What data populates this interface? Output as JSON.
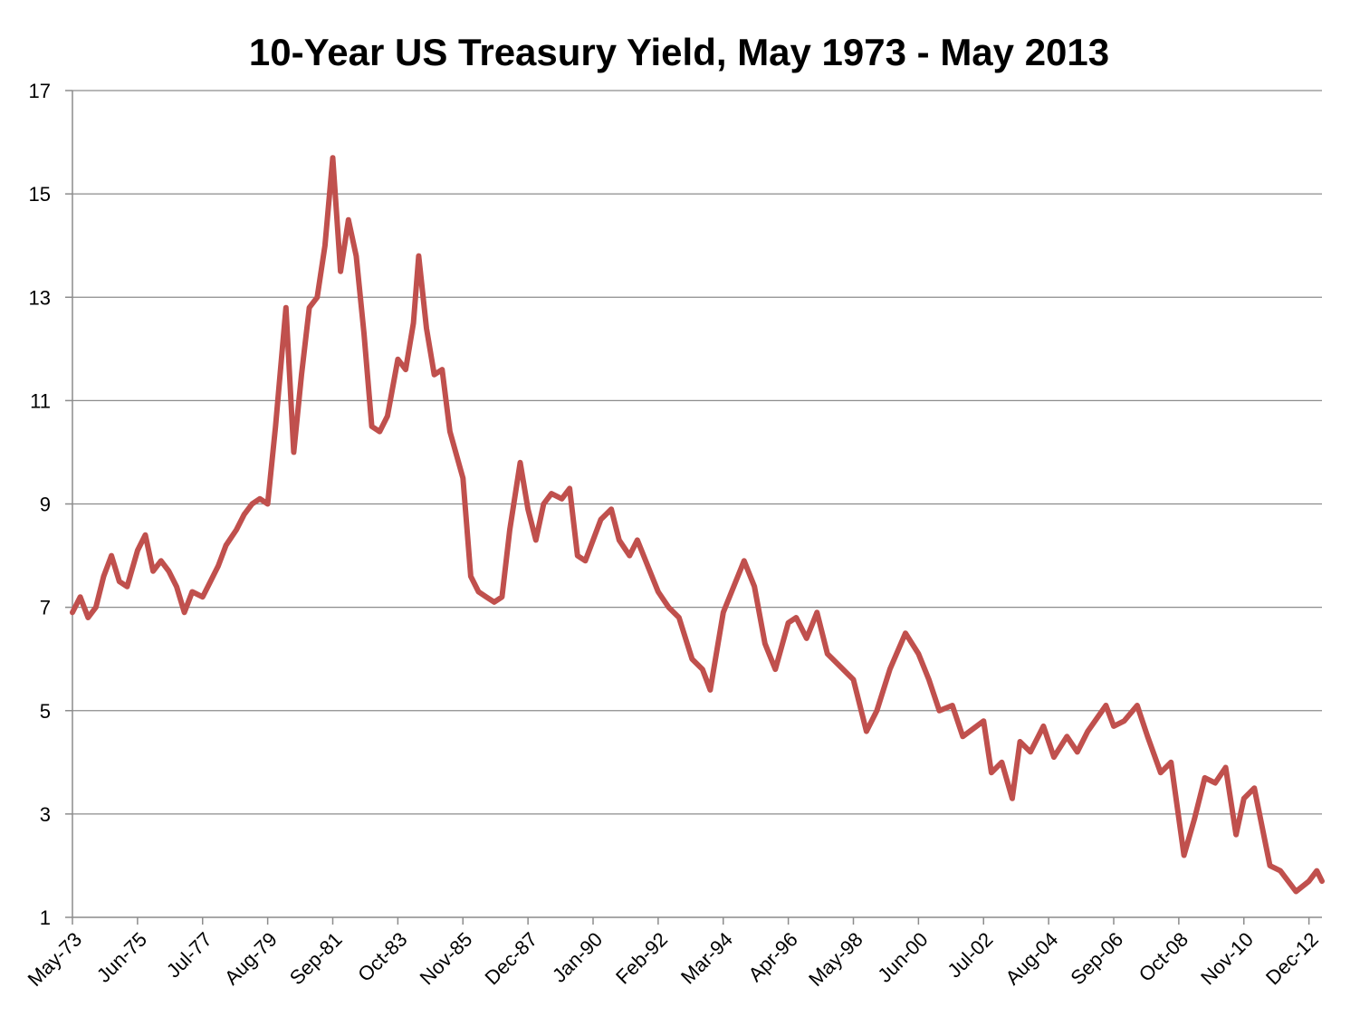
{
  "chart_data": {
    "type": "line",
    "title": "10-Year US Treasury Yield, May 1973 - May 2013",
    "xlabel": "",
    "ylabel": "",
    "ylim": [
      1,
      17
    ],
    "yticks": [
      1,
      3,
      5,
      7,
      9,
      11,
      13,
      15,
      17
    ],
    "xlim": [
      "1973-05",
      "2013-05"
    ],
    "xtick_labels": [
      "May-73",
      "Jun-75",
      "Jul-77",
      "Aug-79",
      "Sep-81",
      "Oct-83",
      "Nov-85",
      "Dec-87",
      "Jan-90",
      "Feb-92",
      "Mar-94",
      "Apr-96",
      "May-98",
      "Jun-00",
      "Jul-02",
      "Aug-04",
      "Sep-06",
      "Oct-08",
      "Nov-10",
      "Dec-12"
    ],
    "xtick_dates": [
      "1973-05",
      "1975-06",
      "1977-07",
      "1979-08",
      "1981-09",
      "1983-10",
      "1985-11",
      "1987-12",
      "1990-01",
      "1992-02",
      "1994-03",
      "1996-04",
      "1998-05",
      "2000-06",
      "2002-07",
      "2004-08",
      "2006-09",
      "2008-10",
      "2010-11",
      "2012-12"
    ],
    "grid": true,
    "legend": "none",
    "line_color": "#c0504d",
    "series": [
      {
        "x": [
          "1973-05",
          "1973-08",
          "1973-11",
          "1974-02",
          "1974-05",
          "1974-08",
          "1974-11",
          "1975-02",
          "1975-06",
          "1975-09",
          "1975-12",
          "1976-03",
          "1976-06",
          "1976-09",
          "1976-12",
          "1977-03",
          "1977-07",
          "1977-10",
          "1978-01",
          "1978-04",
          "1978-08",
          "1978-11",
          "1979-02",
          "1979-05",
          "1979-08",
          "1979-11",
          "1980-03",
          "1980-06",
          "1980-09",
          "1980-12",
          "1981-03",
          "1981-06",
          "1981-09",
          "1981-12",
          "1982-03",
          "1982-06",
          "1982-09",
          "1982-12",
          "1983-03",
          "1983-06",
          "1983-10",
          "1984-01",
          "1984-04",
          "1984-06",
          "1984-09",
          "1984-12",
          "1985-03",
          "1985-06",
          "1985-11",
          "1986-02",
          "1986-05",
          "1986-08",
          "1986-11",
          "1987-02",
          "1987-05",
          "1987-09",
          "1987-12",
          "1988-03",
          "1988-06",
          "1988-09",
          "1989-01",
          "1989-04",
          "1989-07",
          "1989-10",
          "1990-01",
          "1990-04",
          "1990-08",
          "1990-11",
          "1991-03",
          "1991-06",
          "1991-10",
          "1992-02",
          "1992-06",
          "1992-10",
          "1993-03",
          "1993-07",
          "1993-10",
          "1994-03",
          "1994-07",
          "1994-11",
          "1995-03",
          "1995-07",
          "1995-11",
          "1996-04",
          "1996-07",
          "1996-11",
          "1997-03",
          "1997-07",
          "1997-11",
          "1998-05",
          "1998-10",
          "1999-02",
          "1999-07",
          "2000-01",
          "2000-06",
          "2000-10",
          "2001-02",
          "2001-07",
          "2001-11",
          "2002-07",
          "2002-10",
          "2003-02",
          "2003-06",
          "2003-09",
          "2004-01",
          "2004-06",
          "2004-10",
          "2005-03",
          "2005-07",
          "2005-11",
          "2006-06",
          "2006-09",
          "2007-01",
          "2007-06",
          "2007-10",
          "2008-03",
          "2008-07",
          "2008-12",
          "2009-04",
          "2009-08",
          "2009-12",
          "2010-04",
          "2010-08",
          "2010-11",
          "2011-03",
          "2011-09",
          "2012-01",
          "2012-07",
          "2012-12",
          "2013-03",
          "2013-05"
        ],
        "values": [
          6.9,
          7.2,
          6.8,
          7.0,
          7.6,
          8.0,
          7.5,
          7.4,
          8.1,
          8.4,
          7.7,
          7.9,
          7.7,
          7.4,
          6.9,
          7.3,
          7.2,
          7.5,
          7.8,
          8.2,
          8.5,
          8.8,
          9.0,
          9.1,
          9.0,
          10.5,
          12.8,
          10.0,
          11.5,
          12.8,
          13.0,
          14.0,
          15.7,
          13.5,
          14.5,
          13.8,
          12.3,
          10.5,
          10.4,
          10.7,
          11.8,
          11.6,
          12.5,
          13.8,
          12.4,
          11.5,
          11.6,
          10.4,
          9.5,
          7.6,
          7.3,
          7.2,
          7.1,
          7.2,
          8.5,
          9.8,
          8.9,
          8.3,
          9.0,
          9.2,
          9.1,
          9.3,
          8.0,
          7.9,
          8.3,
          8.7,
          8.9,
          8.3,
          8.0,
          8.3,
          7.8,
          7.3,
          7.0,
          6.8,
          6.0,
          5.8,
          5.4,
          6.9,
          7.4,
          7.9,
          7.4,
          6.3,
          5.8,
          6.7,
          6.8,
          6.4,
          6.9,
          6.1,
          5.9,
          5.6,
          4.6,
          5.0,
          5.8,
          6.5,
          6.1,
          5.6,
          5.0,
          5.1,
          4.5,
          4.8,
          3.8,
          4.0,
          3.3,
          4.4,
          4.2,
          4.7,
          4.1,
          4.5,
          4.2,
          4.6,
          5.1,
          4.7,
          4.8,
          5.1,
          4.5,
          3.8,
          4.0,
          2.2,
          2.9,
          3.7,
          3.6,
          3.9,
          2.6,
          3.3,
          3.5,
          2.0,
          1.9,
          1.5,
          1.7,
          1.9,
          1.7
        ]
      }
    ]
  }
}
